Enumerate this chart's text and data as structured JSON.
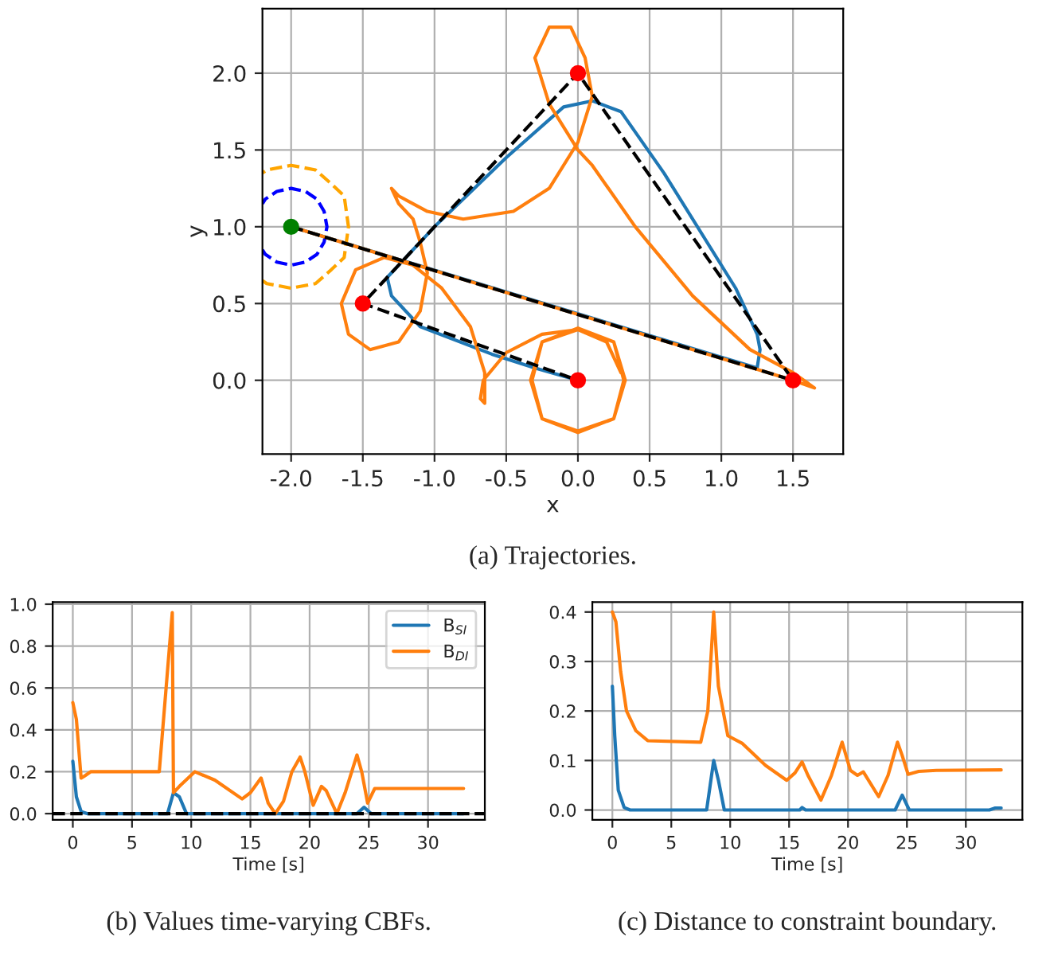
{
  "chart_data": [
    {
      "type": "line",
      "title": "(a) Trajectories.",
      "xlabel": "x",
      "ylabel": "y",
      "xlim": [
        -2.2,
        1.85
      ],
      "ylim": [
        -0.48,
        2.42
      ],
      "xticks": [
        {
          "value": -2,
          "label": "-2.0"
        },
        -1.5,
        {
          "value": -1,
          "label": "-1.0"
        },
        -0.5,
        {
          "value": 0,
          "label": "0.0"
        },
        0.5,
        {
          "value": 1,
          "label": "1.0"
        },
        1.5
      ],
      "yticks": [
        {
          "value": 0,
          "label": "0.0"
        },
        0.5,
        {
          "value": 1,
          "label": "1.0"
        },
        1.5,
        {
          "value": 2,
          "label": "2.0"
        }
      ],
      "grid": true,
      "series": [
        {
          "type": "line",
          "color": "#ffa500",
          "line_style": "dashed",
          "x": [
            -2.2,
            -2.17,
            -2.0,
            -1.83,
            -1.72,
            -1.63,
            -1.6,
            -1.63,
            -1.72,
            -1.83,
            -2.0,
            -2.17,
            -2.2
          ],
          "values": [
            0.65,
            0.63,
            0.6,
            0.63,
            0.72,
            0.8,
            1.0,
            1.2,
            1.28,
            1.37,
            1.4,
            1.37,
            1.35
          ]
        },
        {
          "type": "line",
          "color": "#0000ff",
          "line_style": "dashed",
          "x": [
            -2.2,
            -2.18,
            -2.1,
            -2.0,
            -1.9,
            -1.82,
            -1.77,
            -1.75,
            -1.77,
            -1.82,
            -1.9,
            -2.0,
            -2.1,
            -2.18,
            -2.2
          ],
          "values": [
            0.85,
            0.82,
            0.77,
            0.75,
            0.77,
            0.82,
            0.9,
            1.0,
            1.1,
            1.18,
            1.23,
            1.25,
            1.23,
            1.18,
            1.15
          ]
        },
        {
          "type": "line",
          "color": "#1f77b4",
          "x": [
            -2.0,
            1.0,
            1.25,
            1.27,
            1.25,
            1.1,
            0.6,
            0.3,
            0.1,
            -0.1,
            -0.5,
            -1.0,
            -1.33,
            -1.3,
            -1.1,
            -0.6,
            -0.3,
            0.0
          ],
          "values": [
            1.0,
            0.15,
            0.08,
            0.2,
            0.3,
            0.6,
            1.35,
            1.75,
            1.82,
            1.78,
            1.45,
            1.0,
            0.67,
            0.55,
            0.35,
            0.17,
            0.08,
            0.0
          ]
        },
        {
          "type": "line",
          "color": "#ff7f0e",
          "x": [
            -2.0,
            1.5,
            1.65,
            1.5,
            1.2,
            0.8,
            0.4,
            0.1,
            0.0,
            -0.2,
            -0.3,
            -0.2,
            -0.05,
            0.05,
            0.1,
            0.0,
            -0.2,
            -0.45,
            -0.8,
            -1.05,
            -1.25,
            -1.3,
            -1.25,
            -1.15,
            -1.1,
            -1.05,
            -1.1,
            -1.25,
            -1.45,
            -1.6,
            -1.65,
            -1.55,
            -1.35,
            -1.15,
            -0.95,
            -0.75,
            -0.65,
            -0.65,
            -0.68,
            -0.66,
            -0.5,
            -0.25,
            0.0,
            0.25,
            0.32,
            0.25,
            0.0,
            -0.25,
            -0.33,
            -0.25,
            0.0,
            0.25,
            0.33,
            0.25,
            0.0,
            -0.25,
            -0.32,
            -0.25,
            0.0,
            0.2,
            0.3
          ],
          "values": [
            1.0,
            0.0,
            -0.05,
            0.05,
            0.2,
            0.55,
            1.0,
            1.4,
            1.5,
            1.8,
            2.1,
            2.3,
            2.3,
            2.1,
            1.85,
            1.55,
            1.25,
            1.1,
            1.05,
            1.1,
            1.2,
            1.25,
            1.15,
            1.05,
            0.9,
            0.7,
            0.45,
            0.25,
            0.2,
            0.3,
            0.5,
            0.72,
            0.8,
            0.75,
            0.6,
            0.35,
            0.05,
            -0.15,
            -0.12,
            0.0,
            0.18,
            0.3,
            0.33,
            0.25,
            0.0,
            -0.25,
            -0.34,
            -0.25,
            0.0,
            0.25,
            0.34,
            0.25,
            0.0,
            -0.25,
            -0.33,
            -0.25,
            0.0,
            0.25,
            0.33,
            0.25,
            0.05
          ]
        },
        {
          "type": "line",
          "color": "#000000",
          "line_style": "dashed",
          "x": [
            -2.0,
            1.5,
            0.0,
            -1.5,
            0.0
          ],
          "values": [
            1.0,
            0.0,
            2.0,
            0.5,
            0.0
          ]
        },
        {
          "type": "scatter",
          "x": [
            1.5,
            0.0,
            -1.5,
            0.0,
            -2.0
          ],
          "values": [
            0.0,
            2.0,
            0.5,
            0.0,
            1.0
          ],
          "colors": [
            "#ff0000",
            "#ff0000",
            "#ff0000",
            "#ff0000",
            "#008000"
          ]
        }
      ]
    },
    {
      "type": "line",
      "title": "(b) Values time-varying CBFs.",
      "xlabel": "Time [s]",
      "xlim": [
        -1.7,
        34.8
      ],
      "ylim": [
        -0.03,
        1.01
      ],
      "xticks": [
        0,
        5,
        10,
        15,
        20,
        25,
        30
      ],
      "yticks": [
        {
          "value": 0,
          "label": "0.0"
        },
        0.2,
        0.4,
        0.6,
        0.8,
        {
          "value": 1,
          "label": "1.0"
        }
      ],
      "grid": true,
      "legend": "top right",
      "ref_lines": [
        {
          "axis": "y",
          "value": 0,
          "color": "#000000",
          "line_style": "dashed"
        }
      ],
      "series": [
        {
          "name": "B$_{SI}$",
          "color": "#1f77b4",
          "x": [
            0,
            0.3,
            0.7,
            1.2,
            8,
            8.5,
            9,
            9.6,
            24,
            24.6,
            25.2,
            33
          ],
          "values": [
            0.25,
            0.08,
            0.01,
            0,
            0,
            0.1,
            0.08,
            0,
            0,
            0.03,
            0,
            0
          ]
        },
        {
          "name": "B$_{DI}$",
          "color": "#ff7f0e",
          "x": [
            0,
            0.3,
            0.7,
            1.0,
            1.5,
            7.3,
            8.4,
            8.5,
            9,
            10.3,
            12,
            14.3,
            15,
            15.9,
            16.5,
            17.1,
            17.8,
            18.5,
            19.2,
            19.6,
            20.3,
            21,
            21.4,
            22.3,
            23,
            24,
            24.4,
            24.9,
            25.5,
            33
          ],
          "values": [
            0.53,
            0.45,
            0.17,
            0.18,
            0.2,
            0.2,
            0.96,
            0.1,
            0.13,
            0.2,
            0.16,
            0.07,
            0.1,
            0.17,
            0.05,
            0.0,
            0.06,
            0.2,
            0.27,
            0.2,
            0.04,
            0.13,
            0.11,
            0.0,
            0.1,
            0.28,
            0.2,
            0.05,
            0.12,
            0.12
          ]
        }
      ]
    },
    {
      "type": "line",
      "title": "(c) Distance to constraint boundary.",
      "xlabel": "Time [s]",
      "xlim": [
        -1.7,
        34.8
      ],
      "ylim": [
        -0.02,
        0.42
      ],
      "xticks": [
        0,
        5,
        10,
        15,
        20,
        25,
        30
      ],
      "yticks": [
        {
          "value": 0,
          "label": "0.0"
        },
        0.1,
        0.2,
        0.3,
        0.4
      ],
      "grid": true,
      "series": [
        {
          "color": "#1f77b4",
          "x": [
            0,
            0.2,
            0.5,
            1,
            1.5,
            8,
            8.3,
            8.6,
            9,
            9.5,
            15.9,
            16.1,
            16.4,
            24,
            24.6,
            25.2,
            32,
            32.5,
            33
          ],
          "values": [
            0.25,
            0.15,
            0.04,
            0.005,
            0,
            0,
            0.05,
            0.1,
            0.06,
            0,
            0,
            0.005,
            0,
            0,
            0.03,
            0,
            0,
            0.004,
            0.004
          ]
        },
        {
          "color": "#ff7f0e",
          "x": [
            0,
            0.3,
            0.7,
            1.2,
            2,
            3,
            7.5,
            8.1,
            8.6,
            9,
            9.8,
            11,
            13,
            14.8,
            15.5,
            16.1,
            16.6,
            17.7,
            18.6,
            19.5,
            20.2,
            20.8,
            21.3,
            22.6,
            23.4,
            24.2,
            24.6,
            25.1,
            26,
            27.5,
            33
          ],
          "values": [
            0.4,
            0.38,
            0.28,
            0.2,
            0.16,
            0.14,
            0.137,
            0.2,
            0.4,
            0.25,
            0.15,
            0.135,
            0.09,
            0.06,
            0.075,
            0.097,
            0.07,
            0.02,
            0.07,
            0.137,
            0.08,
            0.07,
            0.077,
            0.027,
            0.07,
            0.137,
            0.11,
            0.072,
            0.078,
            0.08,
            0.081
          ]
        }
      ]
    }
  ]
}
